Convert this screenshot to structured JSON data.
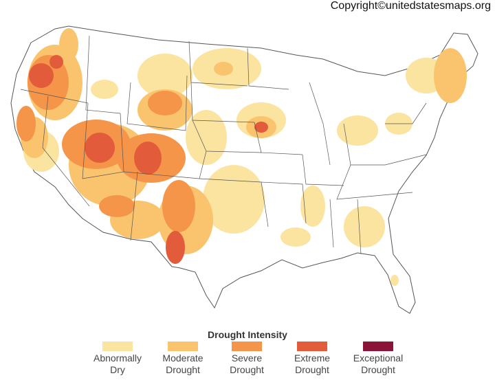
{
  "copyright": "Copyright©unitedstatesmaps.org",
  "legend": {
    "title": "Drought Intensity",
    "items": [
      {
        "label": "Abnormally\nDry",
        "color": "#fbe3a0"
      },
      {
        "label": "Moderate\nDrought",
        "color": "#f9c46d"
      },
      {
        "label": "Severe\nDrought",
        "color": "#f5954a"
      },
      {
        "label": "Extreme\nDrought",
        "color": "#e25b3a"
      },
      {
        "label": "Exceptional\nDrought",
        "color": "#8b1538"
      }
    ]
  }
}
